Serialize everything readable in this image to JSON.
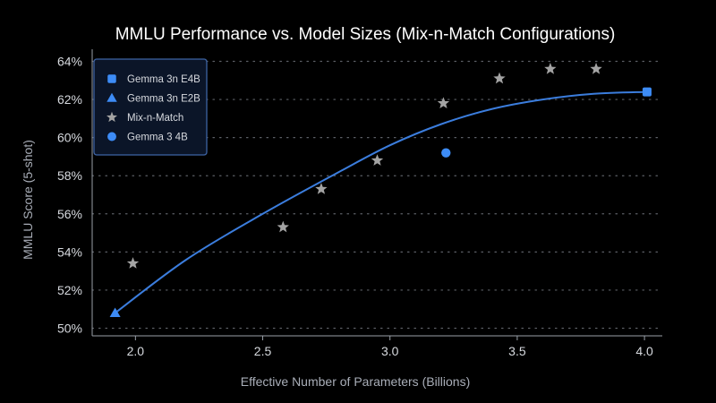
{
  "chart_data": {
    "type": "scatter",
    "title": "MMLU Performance vs. Model Sizes (Mix-n-Match Configurations)",
    "xlabel": "Effective Number of Parameters (Billions)",
    "ylabel": "MMLU Score (5-shot)",
    "xlim": [
      1.83,
      4.07
    ],
    "ylim": [
      49.6,
      64.4
    ],
    "x_ticks": [
      "2.0",
      "2.5",
      "3.0",
      "3.5",
      "4.0"
    ],
    "y_ticks": [
      "50%",
      "52%",
      "54%",
      "56%",
      "58%",
      "60%",
      "62%",
      "64%"
    ],
    "grid": "horizontal-dotted",
    "legend_position": "top-left",
    "series": [
      {
        "name": "Gemma 3n E4B",
        "marker": "square",
        "color": "#3d8cf6",
        "points": [
          [
            4.01,
            62.4
          ]
        ]
      },
      {
        "name": "Gemma 3n E2B",
        "marker": "triangle",
        "color": "#3d8cf6",
        "points": [
          [
            1.92,
            50.8
          ]
        ]
      },
      {
        "name": "Mix-n-Match",
        "marker": "star",
        "color": "#a3a3a3",
        "points": [
          [
            1.99,
            53.4
          ],
          [
            2.58,
            55.3
          ],
          [
            2.73,
            57.3
          ],
          [
            2.95,
            58.8
          ],
          [
            3.21,
            61.8
          ],
          [
            3.43,
            63.1
          ],
          [
            3.63,
            63.6
          ],
          [
            3.81,
            63.6
          ]
        ]
      },
      {
        "name": "Gemma 3 4B",
        "marker": "circle",
        "color": "#3d8cf6",
        "points": [
          [
            3.22,
            59.2
          ]
        ]
      }
    ],
    "trend_line": {
      "name": "fit",
      "color": "#3b7ddd",
      "points": [
        [
          1.92,
          50.8
        ],
        [
          2.2,
          53.6
        ],
        [
          2.5,
          56.0
        ],
        [
          2.8,
          58.2
        ],
        [
          3.0,
          59.6
        ],
        [
          3.2,
          60.7
        ],
        [
          3.4,
          61.5
        ],
        [
          3.6,
          62.0
        ],
        [
          3.8,
          62.3
        ],
        [
          4.01,
          62.4
        ]
      ]
    }
  }
}
